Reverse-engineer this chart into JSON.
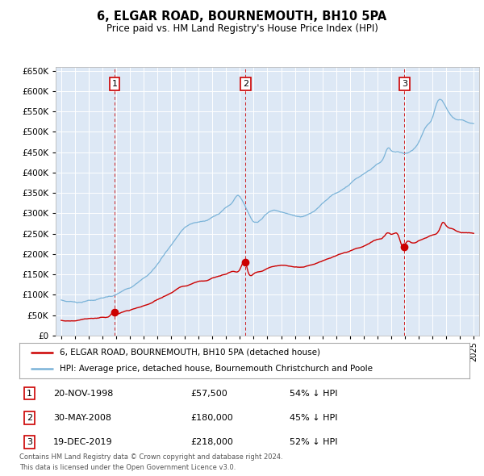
{
  "title": "6, ELGAR ROAD, BOURNEMOUTH, BH10 5PA",
  "subtitle": "Price paid vs. HM Land Registry's House Price Index (HPI)",
  "background_color": "#ffffff",
  "plot_bg_color": "#dde8f5",
  "grid_color": "#ffffff",
  "hpi_color": "#7ab3d8",
  "price_color": "#cc0000",
  "sale_marker_color": "#cc0000",
  "sales": [
    {
      "date_num": 1998.89,
      "price": 57500,
      "label": "1",
      "date_str": "20-NOV-1998",
      "pct": "54% ↓ HPI"
    },
    {
      "date_num": 2008.41,
      "price": 180000,
      "label": "2",
      "date_str": "30-MAY-2008",
      "pct": "45% ↓ HPI"
    },
    {
      "date_num": 2019.97,
      "price": 218000,
      "label": "3",
      "date_str": "19-DEC-2019",
      "pct": "52% ↓ HPI"
    }
  ],
  "legend_line1": "6, ELGAR ROAD, BOURNEMOUTH, BH10 5PA (detached house)",
  "legend_line2": "HPI: Average price, detached house, Bournemouth Christchurch and Poole",
  "footer1": "Contains HM Land Registry data © Crown copyright and database right 2024.",
  "footer2": "This data is licensed under the Open Government Licence v3.0.",
  "ylim": [
    0,
    660000
  ],
  "xlim_start": 1994.6,
  "xlim_end": 2025.4,
  "yticks": [
    0,
    50000,
    100000,
    150000,
    200000,
    250000,
    300000,
    350000,
    400000,
    450000,
    500000,
    550000,
    600000,
    650000
  ],
  "xtick_years": [
    1995,
    1996,
    1997,
    1998,
    1999,
    2000,
    2001,
    2002,
    2003,
    2004,
    2005,
    2006,
    2007,
    2008,
    2009,
    2010,
    2011,
    2012,
    2013,
    2014,
    2015,
    2016,
    2017,
    2018,
    2019,
    2020,
    2021,
    2022,
    2023,
    2024,
    2025
  ]
}
